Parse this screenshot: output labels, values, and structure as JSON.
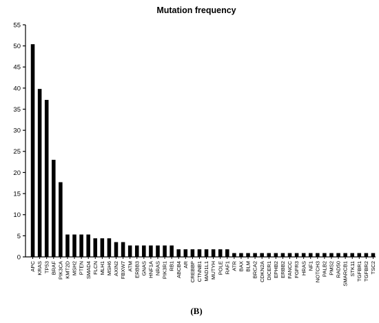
{
  "chart_data": {
    "type": "bar",
    "title": "Mutation frequency",
    "xlabel": "",
    "ylabel": "",
    "ylim": [
      0,
      55
    ],
    "yticks": [
      0,
      5,
      10,
      15,
      20,
      25,
      30,
      35,
      40,
      45,
      50,
      55
    ],
    "grid": false,
    "legend": "none",
    "bar_color": "#000000",
    "categories": [
      "APC",
      "KRAS",
      "TP53",
      "BRAF",
      "PIK3CA",
      "KMT2D",
      "MSH2",
      "PTEN",
      "SMAD4",
      "FLCN",
      "MLH1",
      "MSH6",
      "AXIN2",
      "FBXW7",
      "ATM",
      "ERBB3",
      "GNAS",
      "HNF1A",
      "NRAS",
      "PIK3R1",
      "RB1",
      "ABCB4",
      "AR",
      "CREBBP",
      "CTNNB1",
      "MAD1L1",
      "MUTYH",
      "POLE",
      "RAF1",
      "ATR",
      "BAX",
      "BLM",
      "BRCA2",
      "CDKN2A",
      "DICER1",
      "EPHB2",
      "ERBB2",
      "FANCC",
      "FGFR3",
      "HRAS",
      "NF1",
      "NOTCH3",
      "PALB2",
      "PMS2",
      "RAD50",
      "SMARCB1",
      "STK11",
      "TGFBR1",
      "TGFBR2",
      "TSC2"
    ],
    "values": [
      50.4,
      39.8,
      37.2,
      23.0,
      17.7,
      5.3,
      5.3,
      5.3,
      5.3,
      4.4,
      4.4,
      4.4,
      3.5,
      3.5,
      2.7,
      2.7,
      2.7,
      2.7,
      2.7,
      2.7,
      2.7,
      1.8,
      1.8,
      1.8,
      1.8,
      1.8,
      1.8,
      1.8,
      1.8,
      0.9,
      0.9,
      0.9,
      0.9,
      0.9,
      0.9,
      0.9,
      0.9,
      0.9,
      0.9,
      0.9,
      0.9,
      0.9,
      0.9,
      0.9,
      0.9,
      0.9,
      0.9,
      0.9,
      0.9,
      0.9
    ]
  },
  "panel_label": "(B)"
}
